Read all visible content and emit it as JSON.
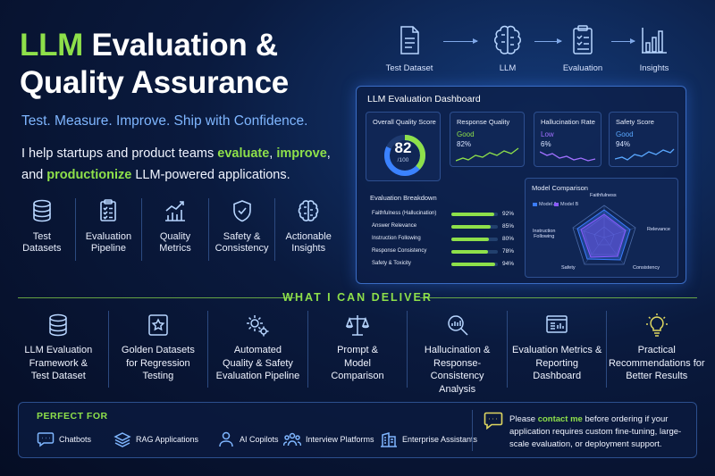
{
  "header": {
    "title_accent": "LLM",
    "title_rest_line1": " Evaluation &",
    "title_line2": "Quality Assurance",
    "tagline": "Test. Measure. Improve. Ship with Confidence.",
    "intro": {
      "part1": "I help startups and product teams ",
      "kw1": "evaluate",
      "sep1": ", ",
      "kw2": "improve",
      "part2": ",",
      "part3": "and ",
      "kw3": "productionize",
      "part4": " LLM-powered applications."
    }
  },
  "features": [
    {
      "label": "Test\nDatasets",
      "icon": "database-icon"
    },
    {
      "label": "Evaluation\nPipeline",
      "icon": "checklist-icon"
    },
    {
      "label": "Quality\nMetrics",
      "icon": "chart-icon"
    },
    {
      "label": "Safety &\nConsistency",
      "icon": "shield-icon"
    },
    {
      "label": "Actionable\nInsights",
      "icon": "brain-icon"
    }
  ],
  "flow": [
    {
      "label": "Test Dataset",
      "icon": "document-icon"
    },
    {
      "label": "LLM",
      "icon": "brain-icon"
    },
    {
      "label": "Evaluation",
      "icon": "clipboard-icon"
    },
    {
      "label": "Insights",
      "icon": "bar-chart-icon"
    }
  ],
  "dashboard": {
    "title": "LLM Evaluation Dashboard",
    "overall": {
      "label": "Overall Quality Score",
      "value": "82",
      "out_of": "/100",
      "fraction": 0.82
    },
    "cards": [
      {
        "label": "Response Quality",
        "status": "Good",
        "value": "82%",
        "status_color": "#8ee04a",
        "line_color": "#8ee04a"
      },
      {
        "label": "Hallucination Rate",
        "status": "Low",
        "value": "6%",
        "status_color": "#a070ff",
        "line_color": "#a070ff"
      },
      {
        "label": "Safety Score",
        "status": "Good",
        "value": "94%",
        "status_color": "#5aa8ff",
        "line_color": "#5aa8ff"
      }
    ],
    "breakdown": {
      "title": "Evaluation Breakdown",
      "rows": [
        {
          "label": "Faithfulness (Hallucination)",
          "value": "92%",
          "pct": 92
        },
        {
          "label": "Answer Relevance",
          "value": "85%",
          "pct": 85
        },
        {
          "label": "Instruction Following",
          "value": "80%",
          "pct": 80
        },
        {
          "label": "Response Consistency",
          "value": "78%",
          "pct": 78
        },
        {
          "label": "Safety & Toxicity",
          "value": "94%",
          "pct": 94
        }
      ]
    },
    "comparison": {
      "title": "Model Comparison",
      "legend": [
        "Model A",
        "Model B"
      ],
      "axes": [
        "Faithfulness",
        "Relevance",
        "Consistency",
        "Safety",
        "Instruction\nFollowing"
      ]
    }
  },
  "section_title": "WHAT I CAN DELIVER",
  "deliverables": [
    {
      "label": "LLM Evaluation\nFramework &\nTest Dataset",
      "icon": "database-icon"
    },
    {
      "label": "Golden Datasets\nfor Regression\nTesting",
      "icon": "star-badge-icon"
    },
    {
      "label": "Automated\nQuality & Safety\nEvaluation Pipeline",
      "icon": "gears-icon"
    },
    {
      "label": "Prompt &\nModel\nComparison",
      "icon": "scales-icon"
    },
    {
      "label": "Hallucination &\nResponse-Consistency\nAnalysis",
      "icon": "magnifier-chart-icon"
    },
    {
      "label": "Evaluation Metrics &\nReporting\nDashboard",
      "icon": "dashboard-icon"
    },
    {
      "label": "Practical\nRecommendations for\nBetter Results",
      "icon": "lightbulb-icon"
    }
  ],
  "perfect_for": {
    "title": "PERFECT FOR",
    "items": [
      {
        "label": "Chatbots",
        "icon": "chat-icon"
      },
      {
        "label": "RAG Applications",
        "icon": "layers-icon"
      },
      {
        "label": "AI Copilots",
        "icon": "person-icon"
      },
      {
        "label": "Interview Platforms",
        "icon": "group-icon"
      },
      {
        "label": "Enterprise Assistants",
        "icon": "building-icon"
      }
    ]
  },
  "note": {
    "pre": "Please ",
    "link": "contact me",
    "post": " before ordering if your application requires custom fine-tuning, large-scale evaluation, or deployment support.",
    "icon": "message-icon"
  },
  "colors": {
    "accent": "#8ee04a",
    "blue": "#7fb6ff",
    "background": "#0a1a3e"
  }
}
